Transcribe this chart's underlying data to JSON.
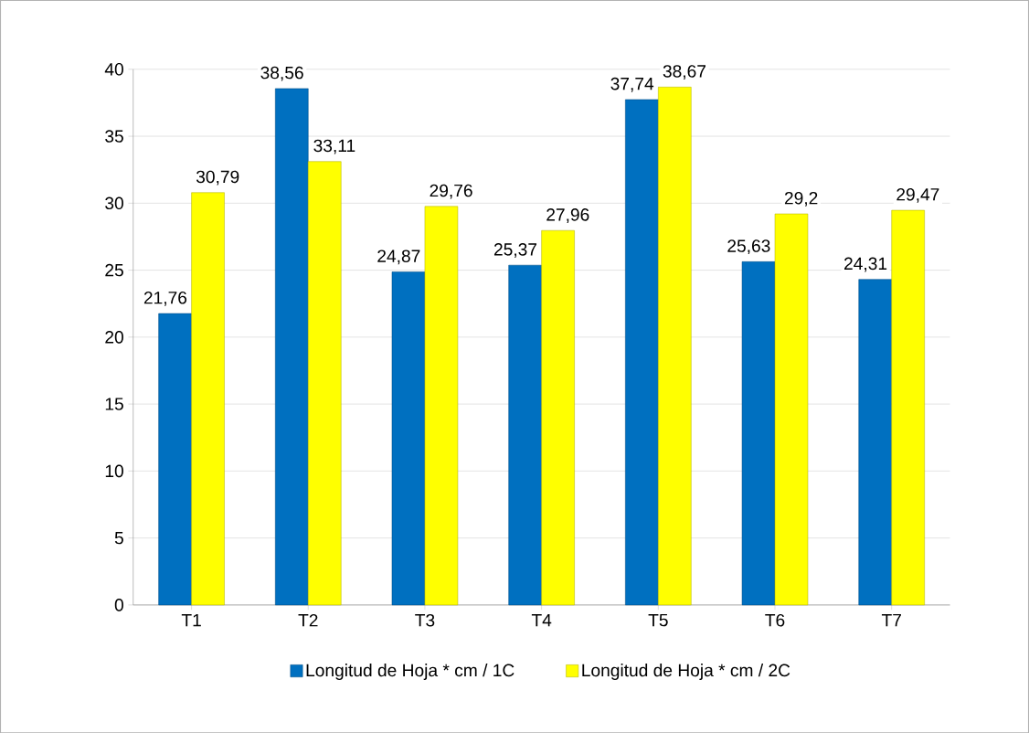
{
  "chart_data": {
    "type": "bar",
    "categories": [
      "T1",
      "T2",
      "T3",
      "T4",
      "T5",
      "T6",
      "T7"
    ],
    "series": [
      {
        "name": "Longitud de Hoja * cm / 1C",
        "color": "#0070c0",
        "values": [
          21.76,
          38.56,
          24.87,
          25.37,
          37.74,
          25.63,
          24.31
        ],
        "value_labels": [
          "21,76",
          "38,56",
          "24,87",
          "25,37",
          "37,74",
          "25,63",
          "24,31"
        ]
      },
      {
        "name": "Longitud de Hoja * cm / 2C",
        "color": "#ffff00",
        "values": [
          30.79,
          33.11,
          29.76,
          27.96,
          38.67,
          29.2,
          29.47
        ],
        "value_labels": [
          "30,79",
          "33,11",
          "29,76",
          "27,96",
          "38,67",
          "29,2",
          "29,47"
        ]
      }
    ],
    "ylim": [
      0,
      40
    ],
    "yticks": [
      0,
      5,
      10,
      15,
      20,
      25,
      30,
      35,
      40
    ],
    "grid": "y",
    "legend": "bottom"
  }
}
